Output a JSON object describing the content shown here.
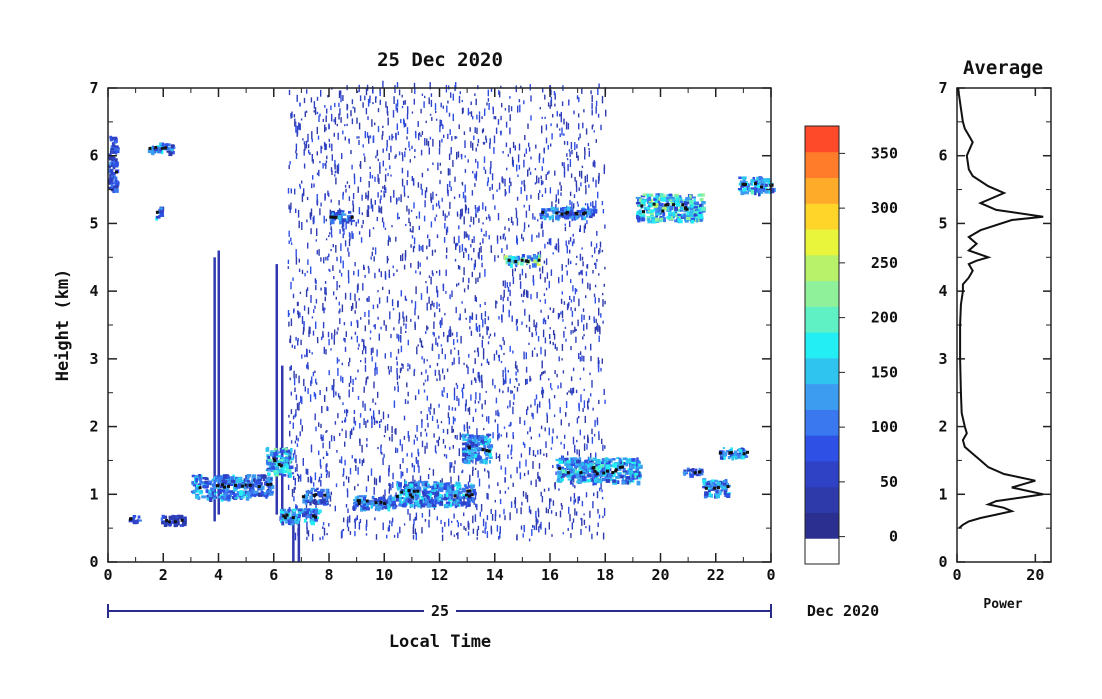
{
  "chart_data": [
    {
      "type": "heatmap",
      "title": "25 Dec 2020",
      "xlabel": "Local Time",
      "ylabel": "Height (km)",
      "x_ticks": [
        "0",
        "2",
        "4",
        "6",
        "8",
        "10",
        "12",
        "14",
        "16",
        "18",
        "20",
        "22",
        "0"
      ],
      "x_tick_values": [
        0,
        2,
        4,
        6,
        8,
        10,
        12,
        14,
        16,
        18,
        20,
        22,
        24
      ],
      "y_ticks": [
        "0",
        "1",
        "2",
        "3",
        "4",
        "5",
        "6",
        "7"
      ],
      "xlim": [
        0,
        24
      ],
      "ylim": [
        0,
        7
      ],
      "date_axis": {
        "day_label": "25",
        "month_label": "Dec 2020"
      },
      "colorbar": {
        "ticks": [
          "0",
          "50",
          "100",
          "150",
          "200",
          "250",
          "300",
          "350"
        ],
        "tick_values": [
          0,
          50,
          100,
          150,
          200,
          250,
          300,
          350
        ],
        "range": [
          -25,
          375
        ],
        "colors": [
          "#ffffff",
          "#2b2f8f",
          "#2e3aaa",
          "#2f42c6",
          "#2f50e4",
          "#3a78ef",
          "#3c9cf0",
          "#2fc4f0",
          "#22eef4",
          "#5ff0c4",
          "#8ff29a",
          "#b8f26a",
          "#e8f53a",
          "#ffd52a",
          "#ffab2a",
          "#ff7d2a",
          "#ff4a2a"
        ]
      },
      "cloud_layers": [
        {
          "t": [
            0.0,
            0.3
          ],
          "h": [
            5.5,
            6.3
          ],
          "level": 100
        },
        {
          "t": [
            1.4,
            2.3
          ],
          "h": [
            6.05,
            6.2
          ],
          "level": 150
        },
        {
          "t": [
            1.7,
            1.9
          ],
          "h": [
            5.1,
            5.25
          ],
          "level": 150
        },
        {
          "t": [
            0.7,
            1.1
          ],
          "h": [
            0.6,
            0.7
          ],
          "level": 100
        },
        {
          "t": [
            1.9,
            2.8
          ],
          "h": [
            0.55,
            0.7
          ],
          "level": 80
        },
        {
          "t": [
            3.0,
            5.0
          ],
          "h": [
            0.95,
            1.3
          ],
          "level": 150
        },
        {
          "t": [
            5.0,
            5.9
          ],
          "h": [
            1.0,
            1.3
          ],
          "level": 120
        },
        {
          "t": [
            5.7,
            6.6
          ],
          "h": [
            1.3,
            1.7
          ],
          "level": 180
        },
        {
          "t": [
            6.2,
            7.6
          ],
          "h": [
            0.6,
            0.8
          ],
          "level": 150
        },
        {
          "t": [
            7.0,
            7.9
          ],
          "h": [
            0.9,
            1.1
          ],
          "level": 120
        },
        {
          "t": [
            8.0,
            8.8
          ],
          "h": [
            5.05,
            5.2
          ],
          "level": 150
        },
        {
          "t": [
            8.8,
            10.4
          ],
          "h": [
            0.8,
            1.0
          ],
          "level": 140
        },
        {
          "t": [
            10.4,
            13.2
          ],
          "h": [
            0.85,
            1.2
          ],
          "level": 150
        },
        {
          "t": [
            12.8,
            13.8
          ],
          "h": [
            1.5,
            1.9
          ],
          "level": 150
        },
        {
          "t": [
            14.3,
            15.6
          ],
          "h": [
            4.4,
            4.55
          ],
          "level": 220
        },
        {
          "t": [
            15.6,
            17.6
          ],
          "h": [
            5.1,
            5.25
          ],
          "level": 130
        },
        {
          "t": [
            16.2,
            19.2
          ],
          "h": [
            1.2,
            1.55
          ],
          "level": 160
        },
        {
          "t": [
            19.1,
            21.5
          ],
          "h": [
            5.05,
            5.45
          ],
          "level": 200
        },
        {
          "t": [
            20.8,
            21.5
          ],
          "h": [
            1.3,
            1.4
          ],
          "level": 120
        },
        {
          "t": [
            21.5,
            22.4
          ],
          "h": [
            1.0,
            1.25
          ],
          "level": 150
        },
        {
          "t": [
            22.1,
            23.1
          ],
          "h": [
            1.55,
            1.7
          ],
          "level": 150
        },
        {
          "t": [
            22.8,
            24.0
          ],
          "h": [
            5.45,
            5.7
          ],
          "level": 160
        }
      ],
      "noise_region": {
        "t": [
          6.5,
          18.0
        ],
        "h": [
          0.3,
          7.0
        ],
        "level": 25
      },
      "vertical_streaks": [
        {
          "t": 3.85,
          "h": [
            0.6,
            4.5
          ]
        },
        {
          "t": 4.0,
          "h": [
            0.7,
            4.6
          ]
        },
        {
          "t": 6.1,
          "h": [
            0.7,
            4.4
          ]
        },
        {
          "t": 6.3,
          "h": [
            0.7,
            2.9
          ]
        },
        {
          "t": 6.7,
          "h": [
            0.0,
            0.7
          ]
        },
        {
          "t": 6.9,
          "h": [
            0.0,
            0.7
          ]
        }
      ]
    },
    {
      "type": "line",
      "title": "Average",
      "xlabel": "Power",
      "ylabel": "",
      "x_ticks": [
        "0",
        "20"
      ],
      "x_tick_values": [
        0,
        20
      ],
      "y_ticks": [
        "0",
        "1",
        "2",
        "3",
        "4",
        "5",
        "6",
        "7"
      ],
      "xlim": [
        0,
        24
      ],
      "ylim": [
        0,
        7
      ],
      "x": [
        0.5,
        1.5,
        3,
        6,
        10,
        14,
        12,
        8,
        10,
        16,
        22,
        18,
        14,
        17,
        20,
        12,
        8,
        6,
        4,
        2,
        1.5,
        2.5,
        2,
        1.2,
        1,
        0.8,
        0.8,
        1,
        1.5,
        1.5,
        3,
        4,
        3,
        5,
        8,
        3,
        5,
        3,
        6,
        14,
        22,
        10,
        6,
        12,
        8,
        4,
        3,
        2.5,
        4,
        3,
        2,
        1.5,
        1,
        0.5,
        0.3
      ],
      "y": [
        0.5,
        0.55,
        0.6,
        0.65,
        0.7,
        0.75,
        0.8,
        0.85,
        0.9,
        0.95,
        1.0,
        1.05,
        1.1,
        1.15,
        1.2,
        1.3,
        1.4,
        1.5,
        1.6,
        1.7,
        1.8,
        1.9,
        2.0,
        2.2,
        2.5,
        3.0,
        3.5,
        3.8,
        4.0,
        4.1,
        4.2,
        4.3,
        4.4,
        4.45,
        4.5,
        4.6,
        4.7,
        4.8,
        4.9,
        5.05,
        5.1,
        5.2,
        5.3,
        5.45,
        5.55,
        5.7,
        5.8,
        6.0,
        6.2,
        6.3,
        6.4,
        6.5,
        6.7,
        6.9,
        7.0
      ]
    }
  ]
}
